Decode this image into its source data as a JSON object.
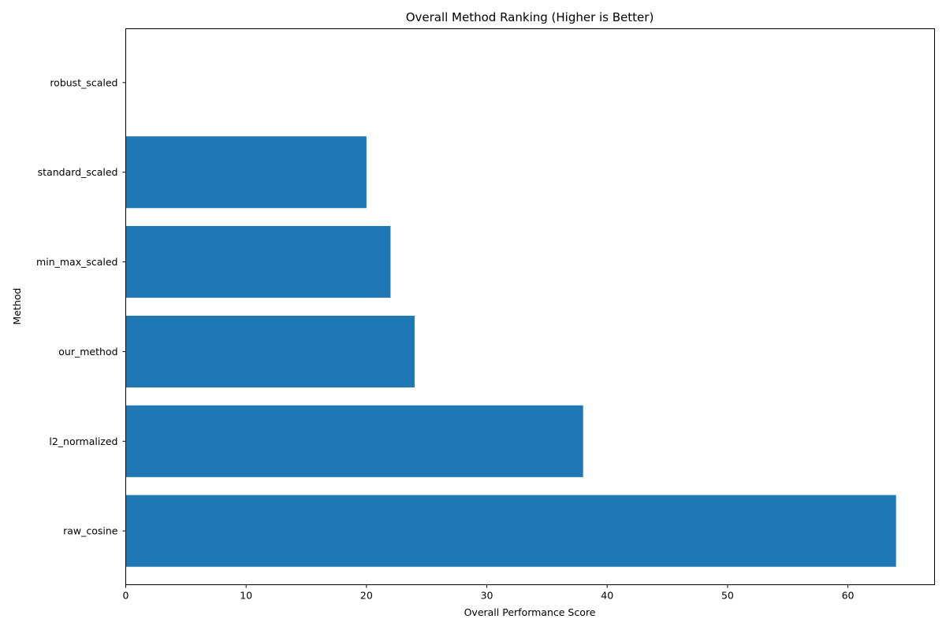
{
  "chart_data": {
    "type": "bar",
    "orientation": "horizontal",
    "title": "Overall Method Ranking (Higher is Better)",
    "xlabel": "Overall Performance Score",
    "ylabel": "Method",
    "categories": [
      "raw_cosine",
      "l2_normalized",
      "our_method",
      "min_max_scaled",
      "standard_scaled",
      "robust_scaled"
    ],
    "values": [
      64,
      38,
      24,
      22,
      20,
      0
    ],
    "xlim": [
      0,
      67.2
    ],
    "xticks": [
      0,
      10,
      20,
      30,
      40,
      50,
      60
    ],
    "bar_color": "#1f77b4",
    "grid": false,
    "legend": "none"
  }
}
